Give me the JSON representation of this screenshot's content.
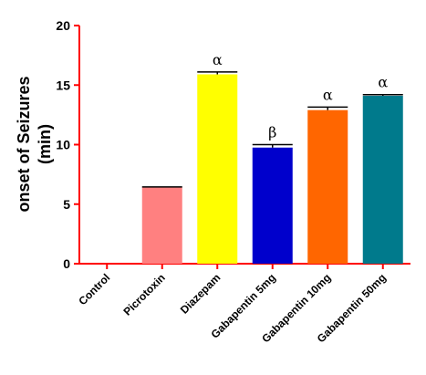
{
  "chart_data": {
    "type": "bar",
    "title": "",
    "xlabel": "",
    "ylabel_lines": [
      "onset of Seizures",
      "(min)"
    ],
    "ylim": [
      0,
      20
    ],
    "yticks": [
      0,
      5,
      10,
      15,
      20
    ],
    "grid": false,
    "categories": [
      "Control",
      "Picrotoxin",
      "Diazepam",
      "Gabapentin 5mg",
      "Gabapentin 10mg",
      "Gabapentin 50mg"
    ],
    "values": [
      0,
      6.4,
      15.9,
      9.75,
      12.9,
      14.1
    ],
    "errors": [
      0,
      0.05,
      0.2,
      0.25,
      0.25,
      0.1
    ],
    "annotations": [
      "",
      "",
      "α",
      "β",
      "α",
      "α"
    ],
    "colors": [
      "#ff8080",
      "#ff8080",
      "#ffff00",
      "#0000cc",
      "#ff6600",
      "#007a8c"
    ],
    "axis_color": "#ff0000"
  }
}
